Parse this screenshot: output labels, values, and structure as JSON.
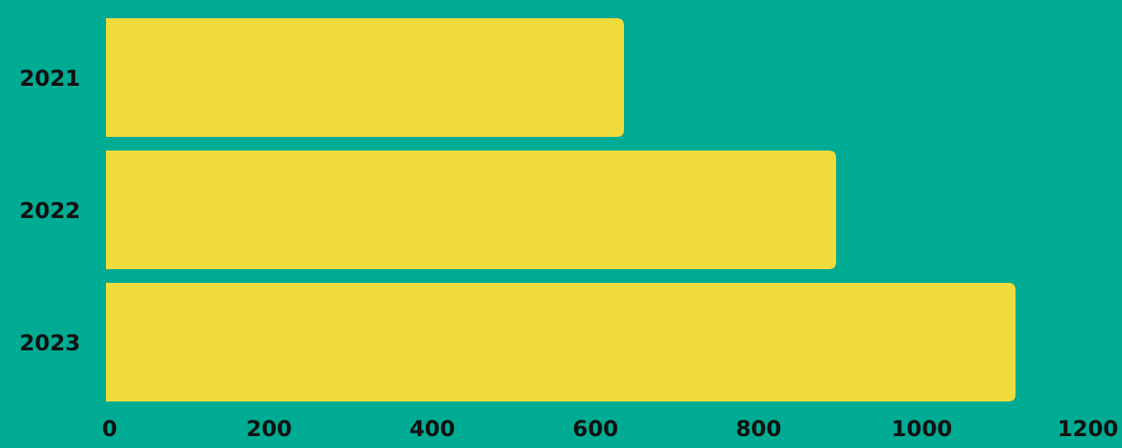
{
  "chart_data": {
    "type": "bar",
    "orientation": "horizontal",
    "categories": [
      "2021",
      "2022",
      "2023"
    ],
    "values": [
      635,
      895,
      1115
    ],
    "xlim": [
      0,
      1200
    ],
    "xticks": [
      "0",
      "200",
      "400",
      "600",
      "800",
      "1000",
      "1200"
    ],
    "grid": false,
    "colors": {
      "background": "#00ab93",
      "bar": "#f0db3d",
      "text": "#111111"
    }
  }
}
